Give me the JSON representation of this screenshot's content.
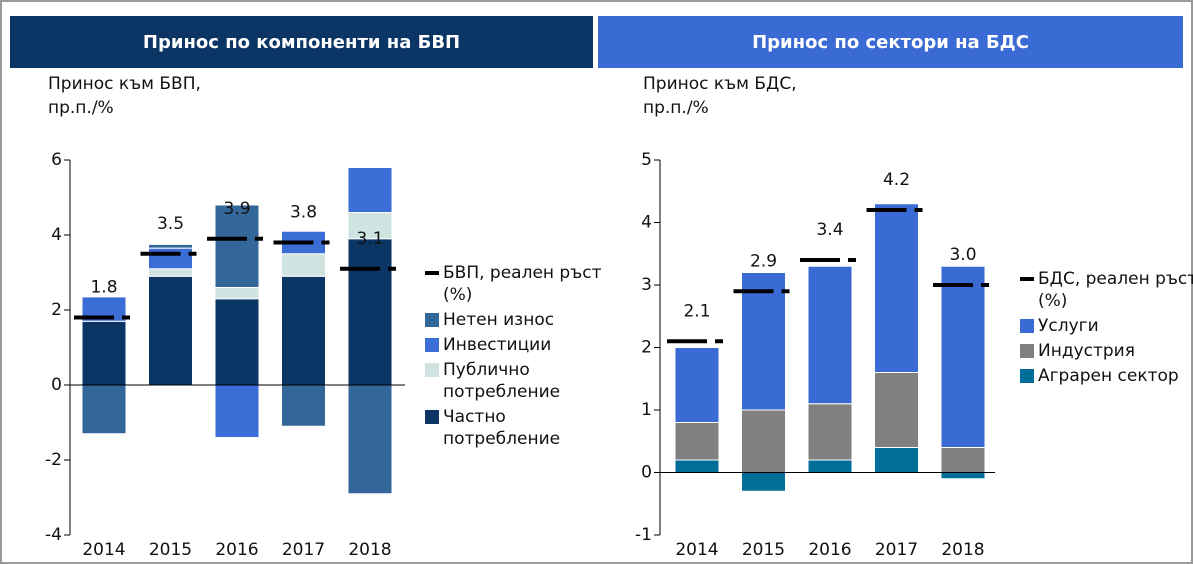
{
  "chart_data": [
    {
      "type": "bar",
      "title": "Принос по компоненти на БВП",
      "ylabel": "Принос към БВП, пр.п./%",
      "categories": [
        "2014",
        "2015",
        "2016",
        "2017",
        "2018"
      ],
      "ylim": [
        -4,
        6
      ],
      "yticks": [
        -4,
        -2,
        0,
        2,
        4,
        6
      ],
      "series": [
        {
          "name": "Частно потребление",
          "color": "#0b3564",
          "values": [
            1.7,
            2.9,
            2.3,
            2.9,
            3.9
          ]
        },
        {
          "name": "Публично потребление",
          "color": "#cfe4e1",
          "values": [
            0,
            0.2,
            0.3,
            0.6,
            0.7
          ]
        },
        {
          "name": "Инвестиции",
          "color": "#3a6dd6",
          "values": [
            0.65,
            0.55,
            -1.4,
            0.6,
            1.2
          ]
        },
        {
          "name": "Нетен износ",
          "color": "#336699",
          "values": [
            -1.3,
            0.1,
            2.2,
            -1.1,
            -2.9
          ]
        }
      ],
      "line": {
        "name": "БВП, реален ръст (%)",
        "color": "#000000",
        "values": [
          1.8,
          3.5,
          3.9,
          3.8,
          3.1
        ]
      }
    },
    {
      "type": "bar",
      "title": "Принос по сектори на БДС",
      "ylabel": "Принос към БДС, пр.п./%",
      "categories": [
        "2014",
        "2015",
        "2016",
        "2017",
        "2018"
      ],
      "ylim": [
        -1,
        5
      ],
      "yticks": [
        -1,
        0,
        1,
        2,
        3,
        4,
        5
      ],
      "series": [
        {
          "name": "Аграрен сектор",
          "color": "#006e98",
          "values": [
            0.2,
            -0.3,
            0.2,
            0.4,
            -0.1
          ]
        },
        {
          "name": "Индустрия",
          "color": "#808080",
          "values": [
            0.6,
            1.0,
            0.9,
            1.2,
            0.4
          ]
        },
        {
          "name": "Услуги",
          "color": "#3a6ad4",
          "values": [
            1.2,
            2.2,
            2.2,
            2.7,
            2.9
          ]
        }
      ],
      "line": {
        "name": "БДС, реален ръст (%)",
        "color": "#000000",
        "values": [
          2.1,
          2.9,
          3.4,
          4.2,
          3.0
        ],
        "value_labels": [
          "2.1",
          "2.9",
          "3.4",
          "4.2",
          "3.0"
        ]
      }
    }
  ]
}
